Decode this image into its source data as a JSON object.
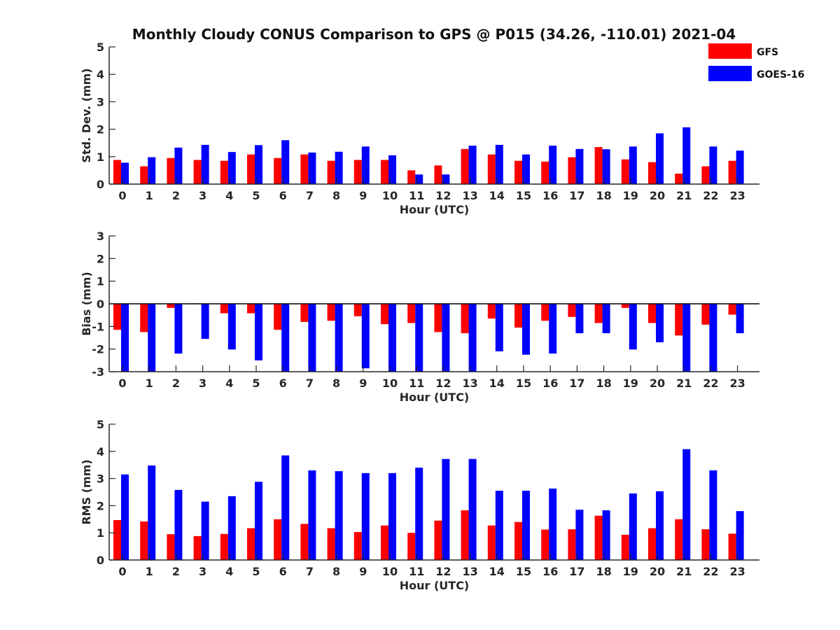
{
  "figure": {
    "title": "Monthly Cloudy CONUS Comparison to GPS @ P015 (34.26, -110.01) 2021-04"
  },
  "legend": {
    "placement": "top-right",
    "entries": [
      {
        "label": "GFS",
        "color": "#ff0000"
      },
      {
        "label": "GOES-16",
        "color": "#0000ff"
      }
    ]
  },
  "chart_data": [
    {
      "type": "bar",
      "panel": "stddev",
      "xlabel": "Hour (UTC)",
      "ylabel": "Std. Dev. (mm)",
      "ylim": [
        0,
        5
      ],
      "yticks": [
        0,
        1,
        2,
        3,
        4,
        5
      ],
      "categories": [
        "0",
        "1",
        "2",
        "3",
        "4",
        "5",
        "6",
        "7",
        "8",
        "9",
        "10",
        "11",
        "12",
        "13",
        "14",
        "15",
        "16",
        "17",
        "18",
        "19",
        "20",
        "21",
        "22",
        "23"
      ],
      "series": [
        {
          "name": "GFS",
          "color": "#ff0000",
          "values": [
            0.88,
            0.65,
            0.95,
            0.88,
            0.85,
            1.08,
            0.95,
            1.08,
            0.85,
            0.88,
            0.88,
            0.5,
            0.68,
            1.28,
            1.08,
            0.85,
            0.82,
            0.98,
            1.35,
            0.9,
            0.8,
            0.38,
            0.65,
            0.85
          ]
        },
        {
          "name": "GOES-16",
          "color": "#0000ff",
          "values": [
            0.78,
            0.98,
            1.33,
            1.43,
            1.17,
            1.42,
            1.6,
            1.15,
            1.18,
            1.37,
            1.05,
            0.35,
            0.35,
            1.4,
            1.43,
            1.08,
            1.4,
            1.28,
            1.27,
            1.37,
            1.85,
            2.07,
            1.37,
            1.22
          ]
        }
      ]
    },
    {
      "type": "bar",
      "panel": "bias",
      "xlabel": "Hour (UTC)",
      "ylabel": "Bias (mm)",
      "ylim": [
        -3,
        3
      ],
      "yticks": [
        -3,
        -2,
        -1,
        0,
        1,
        2,
        3
      ],
      "categories": [
        "0",
        "1",
        "2",
        "3",
        "4",
        "5",
        "6",
        "7",
        "8",
        "9",
        "10",
        "11",
        "12",
        "13",
        "14",
        "15",
        "16",
        "17",
        "18",
        "19",
        "20",
        "21",
        "22",
        "23"
      ],
      "series": [
        {
          "name": "GFS",
          "color": "#ff0000",
          "values": [
            -1.15,
            -1.25,
            -0.18,
            0.02,
            -0.42,
            -0.42,
            -1.15,
            -0.8,
            -0.75,
            -0.55,
            -0.9,
            -0.85,
            -1.25,
            -1.3,
            -0.65,
            -1.05,
            -0.75,
            -0.58,
            -0.85,
            -0.18,
            -0.85,
            -1.4,
            -0.92,
            -0.48
          ]
        },
        {
          "name": "GOES-16",
          "color": "#0000ff",
          "values": [
            -3,
            -3,
            -2.2,
            -1.55,
            -2.02,
            -2.5,
            -3,
            -3,
            -3,
            -2.85,
            -3,
            -3,
            -3,
            -3,
            -2.1,
            -2.25,
            -2.2,
            -1.3,
            -1.3,
            -2.02,
            -1.7,
            -3,
            -3,
            -1.3
          ]
        }
      ]
    },
    {
      "type": "bar",
      "panel": "rms",
      "xlabel": "Hour (UTC)",
      "ylabel": "RMS (mm)",
      "ylim": [
        0,
        5
      ],
      "yticks": [
        0,
        1,
        2,
        3,
        4,
        5
      ],
      "categories": [
        "0",
        "1",
        "2",
        "3",
        "4",
        "5",
        "6",
        "7",
        "8",
        "9",
        "10",
        "11",
        "12",
        "13",
        "14",
        "15",
        "16",
        "17",
        "18",
        "19",
        "20",
        "21",
        "22",
        "23"
      ],
      "series": [
        {
          "name": "GFS",
          "color": "#ff0000",
          "values": [
            1.47,
            1.42,
            0.95,
            0.88,
            0.96,
            1.17,
            1.5,
            1.33,
            1.17,
            1.03,
            1.27,
            1.0,
            1.45,
            1.83,
            1.27,
            1.4,
            1.12,
            1.13,
            1.63,
            0.93,
            1.17,
            1.5,
            1.13,
            0.97
          ]
        },
        {
          "name": "GOES-16",
          "color": "#0000ff",
          "values": [
            3.15,
            3.48,
            2.58,
            2.15,
            2.35,
            2.88,
            3.85,
            3.3,
            3.27,
            3.2,
            3.2,
            3.4,
            3.72,
            3.72,
            2.55,
            2.55,
            2.63,
            1.85,
            1.83,
            2.45,
            2.53,
            4.08,
            3.3,
            1.8
          ]
        }
      ]
    }
  ]
}
